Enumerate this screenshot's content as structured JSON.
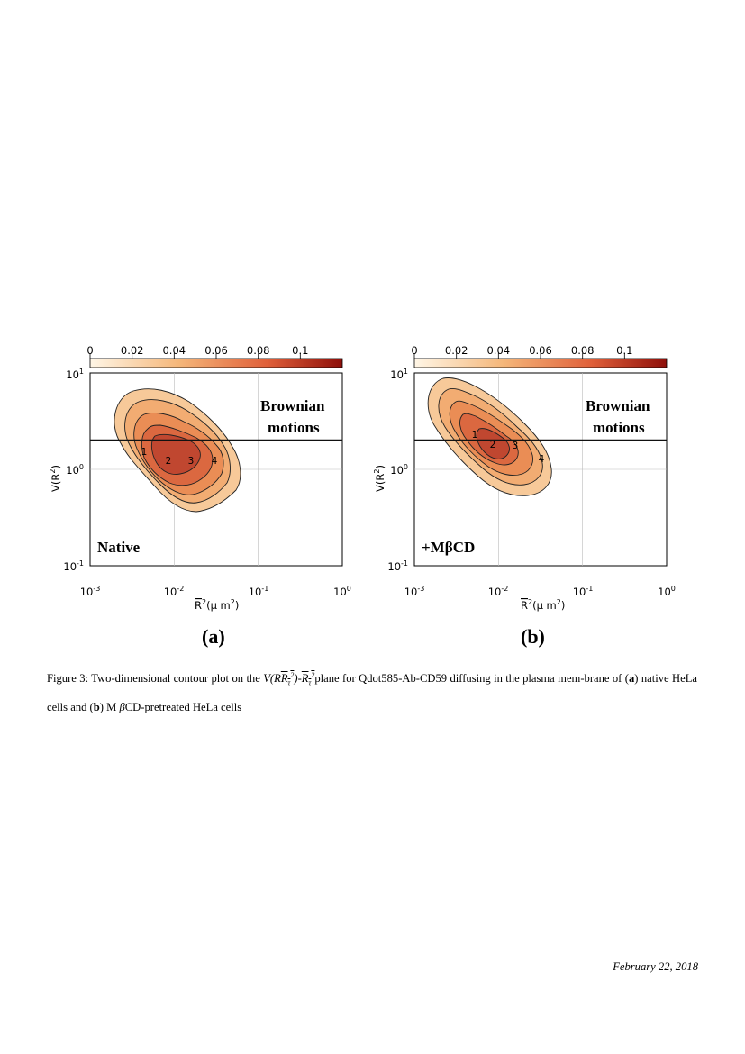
{
  "chart_data": [
    {
      "type": "heatmap",
      "panel_label": "(a)",
      "condition_label": "Native",
      "region_label_line1": "Brownian",
      "region_label_line2": "motions",
      "xlabel": "R²(μ m²)",
      "ylabel": "V(R²)",
      "x_scale": "log",
      "y_scale": "log",
      "xlim": [
        0.001,
        1
      ],
      "ylim": [
        0.1,
        10
      ],
      "x_ticks": [
        "10-3",
        "10-2",
        "10-1",
        "100"
      ],
      "y_ticks": [
        "101",
        "100",
        "10-1"
      ],
      "colorbar_ticks": [
        "0",
        "0.02",
        "0.04",
        "0.06",
        "0.08",
        "0.1"
      ],
      "colorbar_range": [
        0,
        0.12
      ],
      "colorbar_colors": [
        "#fff6e6",
        "#f5b77a",
        "#e0603a",
        "#8e0f0a"
      ],
      "brownian_threshold_y": 2,
      "grid": true,
      "contour_centers": [
        {
          "label": "1",
          "x": 0.0045,
          "y": 1.5
        },
        {
          "label": "2",
          "x": 0.0088,
          "y": 1.2
        },
        {
          "label": "3",
          "x": 0.0155,
          "y": 1.2
        },
        {
          "label": "4",
          "x": 0.03,
          "y": 1.2
        }
      ]
    },
    {
      "type": "heatmap",
      "panel_label": "(b)",
      "condition_label": "+MβCD",
      "region_label_line1": "Brownian",
      "region_label_line2": "motions",
      "xlabel": "R²(μ m²)",
      "ylabel": "V(R²)",
      "x_scale": "log",
      "y_scale": "log",
      "xlim": [
        0.001,
        1
      ],
      "ylim": [
        0.1,
        10
      ],
      "x_ticks": [
        "10-3",
        "10-2",
        "10-1",
        "100"
      ],
      "y_ticks": [
        "101",
        "100",
        "10-1"
      ],
      "colorbar_ticks": [
        "0",
        "0.02",
        "0.04",
        "0.06",
        "0.08",
        "0.1"
      ],
      "colorbar_range": [
        0,
        0.12
      ],
      "colorbar_colors": [
        "#fff6e6",
        "#f5b77a",
        "#e0603a",
        "#8e0f0a"
      ],
      "brownian_threshold_y": 2,
      "grid": true,
      "contour_centers": [
        {
          "label": "1",
          "x": 0.0053,
          "y": 2.4
        },
        {
          "label": "2",
          "x": 0.0088,
          "y": 1.7
        },
        {
          "label": "3",
          "x": 0.015,
          "y": 1.7
        },
        {
          "label": "4",
          "x": 0.03,
          "y": 1.0
        }
      ]
    }
  ],
  "caption": {
    "prefix": "Figure 3: Two-dimensional contour plot on the ",
    "math1": "V(R",
    "middle": "plane for Qdot585-Ab-CD59 diffusing in the plasma mem-brane of (",
    "bold_a": "a",
    "after_a": ") native HeLa cells and (",
    "bold_b": "b",
    "after_b": ") M ",
    "beta": "β",
    "suffix": "CD-pretreated HeLa cells"
  },
  "footer": {
    "date": "February 22, 2018"
  }
}
